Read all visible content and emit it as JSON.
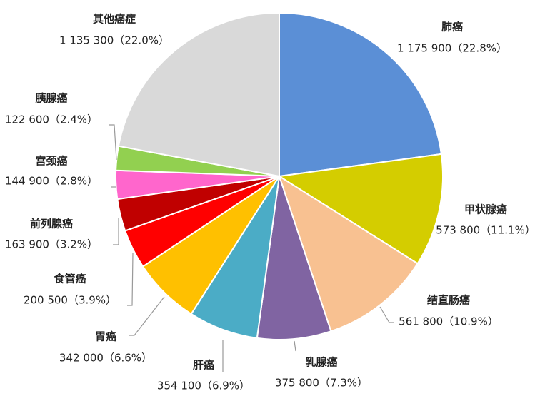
{
  "chart_data": {
    "type": "pie",
    "categories": [
      "肺癌",
      "甲状腺癌",
      "结直肠癌",
      "乳腺癌",
      "肝癌",
      "胃癌",
      "食管癌",
      "前列腺癌",
      "宫颈癌",
      "胰腺癌",
      "其他癌症"
    ],
    "values": [
      1175900,
      573800,
      561800,
      375800,
      354100,
      342000,
      200500,
      163900,
      144900,
      122600,
      1135300
    ],
    "value_labels": [
      "1 175 900（22.8%）",
      "573 800（11.1%）",
      "561 800（10.9%）",
      "375 800（7.3%）",
      "354 100（6.9%）",
      "342 000（6.6%）",
      "200 500（3.9%）",
      "163 900（3.2%）",
      "144 900（2.8%）",
      "122 600（2.4%）",
      "1 135 300（22.0%）"
    ],
    "colors": [
      "#5b8fd6",
      "#d4cd00",
      "#f8c191",
      "#8064a2",
      "#4bacc6",
      "#ffc000",
      "#ff0000",
      "#c00000",
      "#ff66cc",
      "#92d050",
      "#d9d9d9"
    ]
  }
}
